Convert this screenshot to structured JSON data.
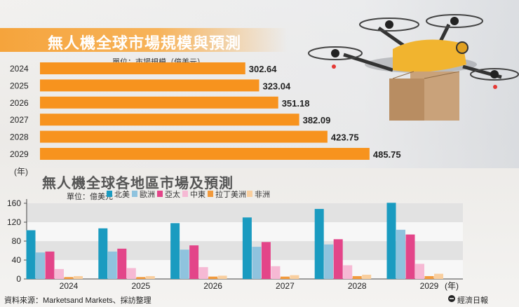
{
  "chart_data": [
    {
      "type": "bar",
      "orientation": "horizontal",
      "title": "無人機全球市場規模與預測",
      "unit_label": "單位：市場規模（億美元）",
      "year_unit": "(年)",
      "categories": [
        "2024",
        "2025",
        "2026",
        "2027",
        "2028",
        "2029"
      ],
      "values": [
        302.64,
        323.04,
        351.18,
        382.09,
        423.75,
        485.75
      ],
      "value_labels": [
        "302.64",
        "323.04",
        "351.18",
        "382.09",
        "423.75",
        "485.75"
      ],
      "xlim": [
        0,
        520
      ]
    },
    {
      "type": "bar",
      "title": "無人機全球各地區市場及預測",
      "unit_label": "單位：億美元",
      "year_unit": "(年)",
      "categories": [
        "2024",
        "2025",
        "2026",
        "2027",
        "2028",
        "2029"
      ],
      "ylim": [
        0,
        160
      ],
      "yticks": [
        "0",
        "40",
        "80",
        "120",
        "160"
      ],
      "series": [
        {
          "name": "北美",
          "color": "#1a9bc0",
          "values": [
            103,
            107,
            118,
            130,
            148,
            161
          ]
        },
        {
          "name": "歐洲",
          "color": "#8fc3de",
          "values": [
            56,
            58,
            62,
            68,
            73,
            104
          ]
        },
        {
          "name": "亞太",
          "color": "#e34589",
          "values": [
            58,
            64,
            71,
            78,
            84,
            94
          ]
        },
        {
          "name": "中東",
          "color": "#f6b9d4",
          "values": [
            21,
            23,
            25,
            27,
            29,
            32
          ]
        },
        {
          "name": "拉丁美洲",
          "color": "#f29a3c",
          "values": [
            4,
            4,
            5,
            5,
            6,
            6
          ]
        },
        {
          "name": "非洲",
          "color": "#f9cf9f",
          "values": [
            6,
            6,
            7,
            8,
            9,
            11
          ]
        }
      ]
    }
  ],
  "footer": {
    "source": "資料來源：Marketsand Markets、採訪整理",
    "logo_text": "經濟日報"
  },
  "colors": {
    "orange_bar": "#f7931e"
  }
}
